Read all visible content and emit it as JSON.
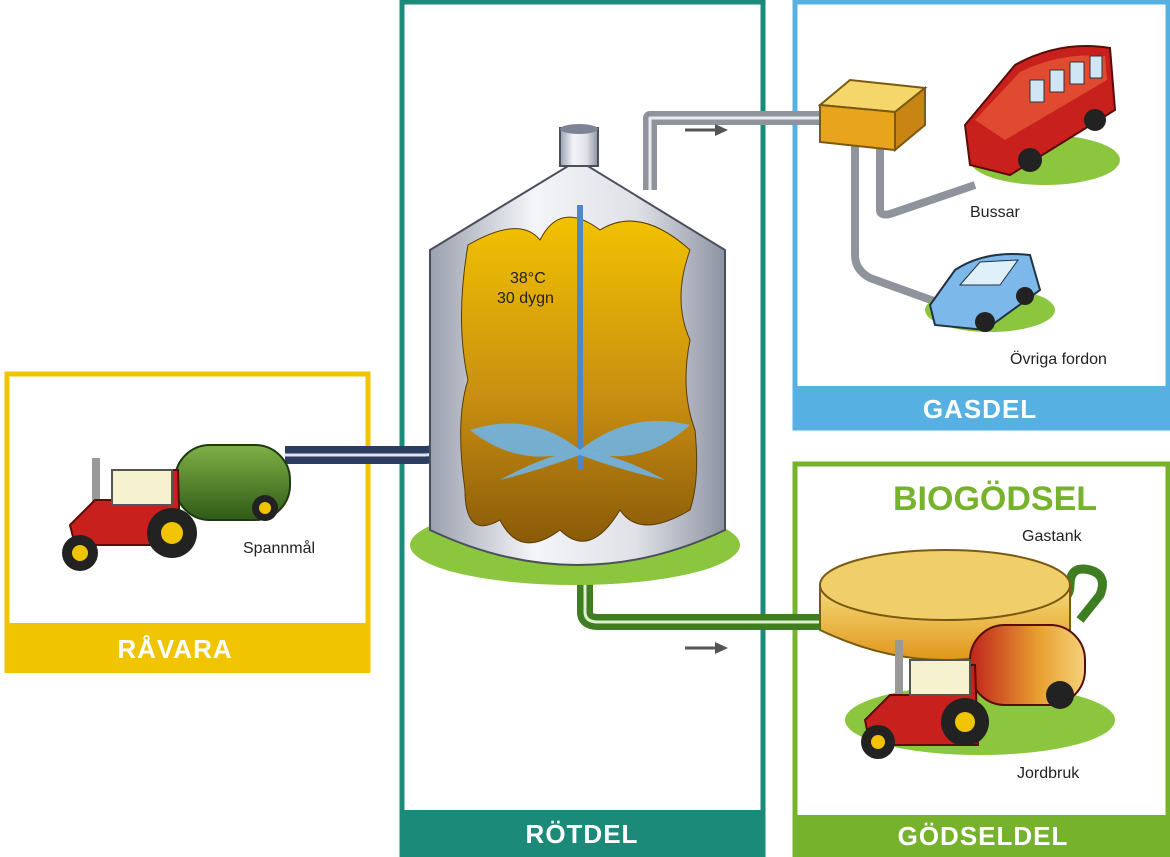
{
  "panels": [
    {
      "title": "RÅVARA",
      "labels": [
        "Spannmål"
      ]
    },
    {
      "title": "RÖTDEL",
      "labels": [
        "38°C",
        "30 dygn"
      ]
    },
    {
      "title": "GASDEL",
      "labels": [
        "Bussar",
        "Övriga fordon"
      ]
    },
    {
      "title": "GÖDSELDEL",
      "heading": "BIOGÖDSEL",
      "labels": [
        "Gastank",
        "Jordbruk"
      ]
    }
  ]
}
